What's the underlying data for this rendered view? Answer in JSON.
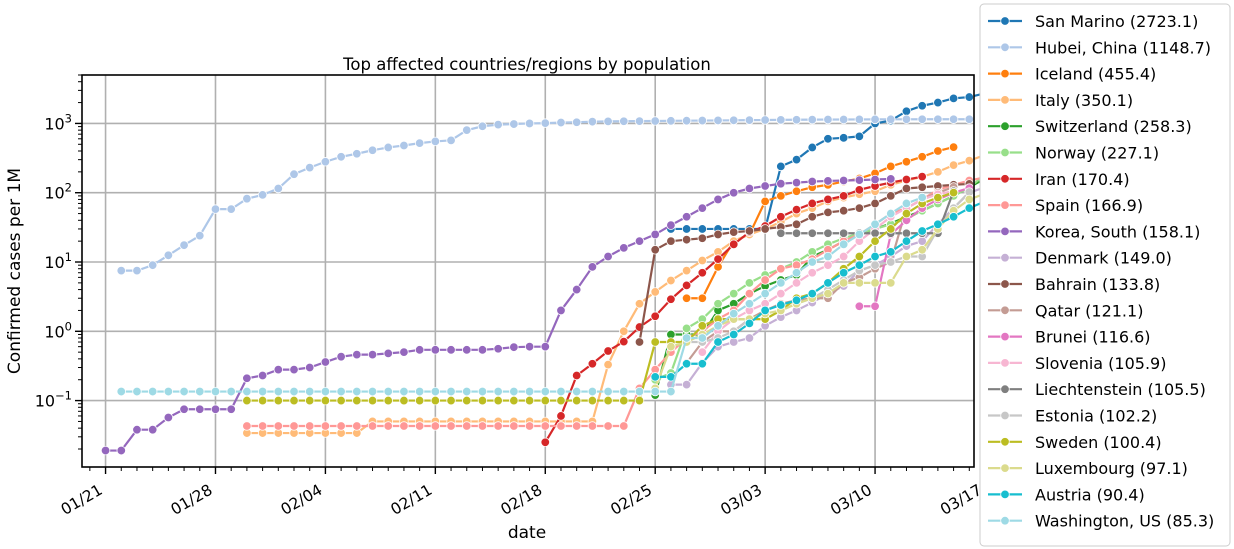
{
  "chart_data": {
    "type": "line",
    "title": "Top affected countries/regions by population",
    "xlabel": "date",
    "ylabel": "Confirmed cases per 1M",
    "yscale": "log",
    "ylim": [
      0.011,
      5000
    ],
    "xlim": [
      -1.5,
      55.3
    ],
    "x_start": "2020-01-22",
    "x_ticks": [
      {
        "day": 0,
        "label": "01/21"
      },
      {
        "day": 7,
        "label": "01/28"
      },
      {
        "day": 14,
        "label": "02/04"
      },
      {
        "day": 21,
        "label": "02/11"
      },
      {
        "day": 28,
        "label": "02/18"
      },
      {
        "day": 35,
        "label": "02/25"
      },
      {
        "day": 42,
        "label": "03/03"
      },
      {
        "day": 49,
        "label": "03/10"
      },
      {
        "day": 56,
        "label": "03/17"
      }
    ],
    "y_ticks": [
      {
        "value": 0.1,
        "base": "10",
        "exp": "−1"
      },
      {
        "value": 1,
        "base": "10",
        "exp": "0"
      },
      {
        "value": 10,
        "base": "10",
        "exp": "1"
      },
      {
        "value": 100,
        "base": "10",
        "exp": "2"
      },
      {
        "value": 1000,
        "base": "10",
        "exp": "3"
      }
    ],
    "grid": true,
    "legend_position": "outside-right",
    "series": [
      {
        "name": "San Marino",
        "legend": "San Marino (2723.1)",
        "color": "#1f77b4",
        "start_day": 36,
        "values": [
          30,
          30,
          30,
          30,
          30,
          30,
          30,
          240,
          300,
          450,
          600,
          620,
          650,
          1000,
          1100,
          1500,
          1800,
          2000,
          2300,
          2400,
          2723.1
        ]
      },
      {
        "name": "Hubei, China",
        "legend": "Hubei, China (1148.7)",
        "color": "#aec7e8",
        "start_day": 1,
        "values": [
          7.5,
          7.5,
          9,
          12.5,
          17.5,
          24,
          58,
          58,
          82,
          93,
          115,
          185,
          230,
          280,
          330,
          365,
          410,
          450,
          480,
          520,
          550,
          570,
          800,
          910,
          960,
          980,
          1000,
          1010,
          1030,
          1040,
          1060,
          1070,
          1075,
          1080,
          1085,
          1090,
          1095,
          1100,
          1105,
          1110,
          1115,
          1120,
          1125,
          1130,
          1135,
          1138,
          1140,
          1142,
          1144,
          1146,
          1147,
          1148,
          1148,
          1148.5,
          1148.7
        ]
      },
      {
        "name": "Iceland",
        "legend": "Iceland (455.4)",
        "color": "#ff7f0e",
        "start_day": 37,
        "values": [
          3,
          3,
          8.5,
          20,
          25,
          75,
          90,
          105,
          120,
          130,
          145,
          160,
          190,
          240,
          280,
          330,
          400,
          455.4
        ]
      },
      {
        "name": "Italy",
        "legend": "Italy (350.1)",
        "color": "#ffbb78",
        "start_day": 9,
        "values": [
          0.034,
          0.034,
          0.034,
          0.034,
          0.034,
          0.034,
          0.034,
          0.034,
          0.05,
          0.05,
          0.05,
          0.05,
          0.05,
          0.05,
          0.05,
          0.05,
          0.05,
          0.05,
          0.05,
          0.05,
          0.05,
          0.05,
          0.05,
          0.33,
          1,
          2.5,
          3.7,
          5.4,
          7.5,
          10.5,
          14,
          20,
          25,
          30,
          38,
          50,
          60,
          75,
          85,
          95,
          105,
          130,
          150,
          170,
          200,
          250,
          290,
          350.1
        ]
      },
      {
        "name": "Switzerland",
        "legend": "Switzerland (258.3)",
        "color": "#2ca02c",
        "start_day": 35,
        "values": [
          0.12,
          0.9,
          0.9,
          0.9,
          2,
          2.5,
          3.5,
          4.5,
          5.5,
          6.5,
          12,
          15,
          20,
          25,
          30,
          36,
          45,
          55,
          70,
          90,
          120,
          160,
          200,
          258.3
        ]
      },
      {
        "name": "Norway",
        "legend": "Norway (227.1)",
        "color": "#98df8a",
        "start_day": 35,
        "values": [
          0.2,
          0.25,
          1.1,
          1.5,
          2.5,
          3.5,
          5,
          6.5,
          8,
          10,
          14,
          18,
          22,
          26,
          30,
          35,
          42,
          55,
          70,
          90,
          120,
          180,
          227.1
        ]
      },
      {
        "name": "Iran",
        "legend": "Iran (170.4)",
        "color": "#d62728",
        "start_day": 28,
        "values": [
          0.025,
          0.06,
          0.23,
          0.34,
          0.52,
          0.71,
          1.15,
          1.65,
          2.9,
          4.6,
          7,
          11,
          18,
          27,
          33,
          45,
          57,
          70,
          80,
          90,
          110,
          125,
          140,
          155,
          170.4
        ]
      },
      {
        "name": "Spain",
        "legend": "Spain (166.9)",
        "color": "#ff9896",
        "start_day": 9,
        "values": [
          0.043,
          0.043,
          0.043,
          0.043,
          0.043,
          0.043,
          0.043,
          0.043,
          0.043,
          0.043,
          0.043,
          0.043,
          0.043,
          0.043,
          0.043,
          0.043,
          0.043,
          0.043,
          0.043,
          0.043,
          0.043,
          0.043,
          0.043,
          0.043,
          0.043,
          0.15,
          0.28,
          0.5,
          0.8,
          1,
          1.5,
          2,
          3.5,
          5.5,
          8,
          9,
          11,
          15,
          20,
          25,
          35,
          50,
          60,
          80,
          110,
          130,
          150,
          166.9
        ]
      },
      {
        "name": "Korea, South",
        "legend": "Korea, South (158.1)",
        "color": "#9467bd",
        "start_day": 0,
        "values": [
          0.019,
          0.019,
          0.038,
          0.038,
          0.057,
          0.075,
          0.075,
          0.075,
          0.075,
          0.21,
          0.23,
          0.28,
          0.28,
          0.3,
          0.36,
          0.43,
          0.46,
          0.46,
          0.48,
          0.5,
          0.54,
          0.54,
          0.54,
          0.54,
          0.54,
          0.56,
          0.59,
          0.6,
          0.6,
          2,
          4,
          8.5,
          12,
          16,
          20,
          25,
          34,
          45,
          60,
          80,
          100,
          115,
          125,
          135,
          140,
          145,
          148,
          150,
          152,
          155,
          158.1
        ]
      },
      {
        "name": "Denmark",
        "legend": "Denmark (149.0)",
        "color": "#c5b0d5",
        "start_day": 36,
        "values": [
          0.17,
          0.17,
          0.35,
          0.6,
          0.7,
          0.8,
          1.2,
          1.6,
          2,
          2.6,
          3.5,
          4.5,
          7.5,
          9,
          12,
          17,
          20,
          35,
          60,
          100,
          120,
          149.0
        ]
      },
      {
        "name": "Bahrain",
        "legend": "Bahrain (133.8)",
        "color": "#8c564b",
        "start_day": 34,
        "values": [
          0.7,
          15,
          20,
          21,
          22,
          25,
          27,
          28,
          30,
          32,
          35,
          45,
          52,
          55,
          60,
          70,
          90,
          115,
          120,
          125,
          130,
          133.8
        ]
      },
      {
        "name": "Qatar",
        "legend": "Qatar (121.1)",
        "color": "#c49c94",
        "start_day": 37,
        "values": [
          0.35,
          0.7,
          1,
          1,
          1.5,
          2,
          2.5,
          2.8,
          3,
          3,
          5,
          6,
          8,
          10,
          60,
          80,
          100,
          121.1
        ]
      },
      {
        "name": "Brunei",
        "legend": "Brunei (116.6)",
        "color": "#e377c2",
        "start_day": 48,
        "values": [
          2.3,
          2.3,
          25,
          40,
          60,
          80,
          100,
          116.6
        ]
      },
      {
        "name": "Slovenia",
        "legend": "Slovenia (105.9)",
        "color": "#f7b6d2",
        "start_day": 38,
        "values": [
          0.5,
          1,
          1.5,
          2,
          2.5,
          3.5,
          5,
          7,
          9,
          12,
          20,
          30,
          45,
          60,
          80,
          95,
          105.9
        ]
      },
      {
        "name": "Liechtenstein",
        "legend": "Liechtenstein (105.5)",
        "color": "#7f7f7f",
        "start_day": 43,
        "values": [
          26,
          26,
          26,
          26,
          26,
          26,
          26,
          26,
          26,
          26,
          26,
          105.5
        ]
      },
      {
        "name": "Estonia",
        "legend": "Estonia (102.2)",
        "color": "#c7c7c7",
        "start_day": 37,
        "values": [
          0.7,
          0.7,
          0.8,
          1,
          1.5,
          1.5,
          2,
          2.5,
          3,
          4,
          5.5,
          7.5,
          9,
          10,
          12,
          12,
          30,
          60,
          102.2
        ]
      },
      {
        "name": "Sweden",
        "legend": "Sweden (100.4)",
        "color": "#bcbd22",
        "start_day": 9,
        "values": [
          0.1,
          0.1,
          0.1,
          0.1,
          0.1,
          0.1,
          0.1,
          0.1,
          0.1,
          0.1,
          0.1,
          0.1,
          0.1,
          0.1,
          0.1,
          0.1,
          0.1,
          0.1,
          0.1,
          0.1,
          0.1,
          0.1,
          0.1,
          0.1,
          0.1,
          0.1,
          0.7,
          0.7,
          0.7,
          1.2,
          1.5,
          1.5,
          1.5,
          1.5,
          2,
          3,
          3.5,
          5,
          8,
          12,
          20,
          30,
          50,
          70,
          85,
          100.4
        ]
      },
      {
        "name": "Luxembourg",
        "legend": "Luxembourg (97.1)",
        "color": "#dbdb8d",
        "start_day": 35,
        "values": [
          0.15,
          0.6,
          0.7,
          0.9,
          1.2,
          1.5,
          1.5,
          1.8,
          2,
          2.5,
          3,
          3.5,
          5,
          5,
          5,
          5,
          12,
          15,
          30,
          55,
          80,
          97.1
        ]
      },
      {
        "name": "Austria",
        "legend": "Austria (90.4)",
        "color": "#17becf",
        "start_day": 35,
        "values": [
          0.22,
          0.22,
          0.34,
          0.34,
          0.7,
          0.9,
          1.3,
          2,
          2.4,
          2.8,
          3.5,
          5,
          7,
          9,
          12,
          14,
          20,
          28,
          35,
          45,
          60,
          75,
          90.4
        ]
      },
      {
        "name": "Washington, US",
        "legend": "Washington, US (85.3)",
        "color": "#9edae5",
        "start_day": 1,
        "values": [
          0.135,
          0.135,
          0.135,
          0.135,
          0.135,
          0.135,
          0.135,
          0.135,
          0.135,
          0.135,
          0.135,
          0.135,
          0.135,
          0.135,
          0.135,
          0.135,
          0.135,
          0.135,
          0.135,
          0.135,
          0.135,
          0.135,
          0.135,
          0.135,
          0.135,
          0.135,
          0.135,
          0.135,
          0.135,
          0.135,
          0.135,
          0.135,
          0.135,
          0.135,
          0.135,
          0.135,
          0.8,
          0.8,
          1.2,
          1.8,
          2.5,
          3.5,
          5,
          7,
          10,
          12,
          18,
          25,
          35,
          50,
          70,
          85.3
        ]
      }
    ]
  }
}
